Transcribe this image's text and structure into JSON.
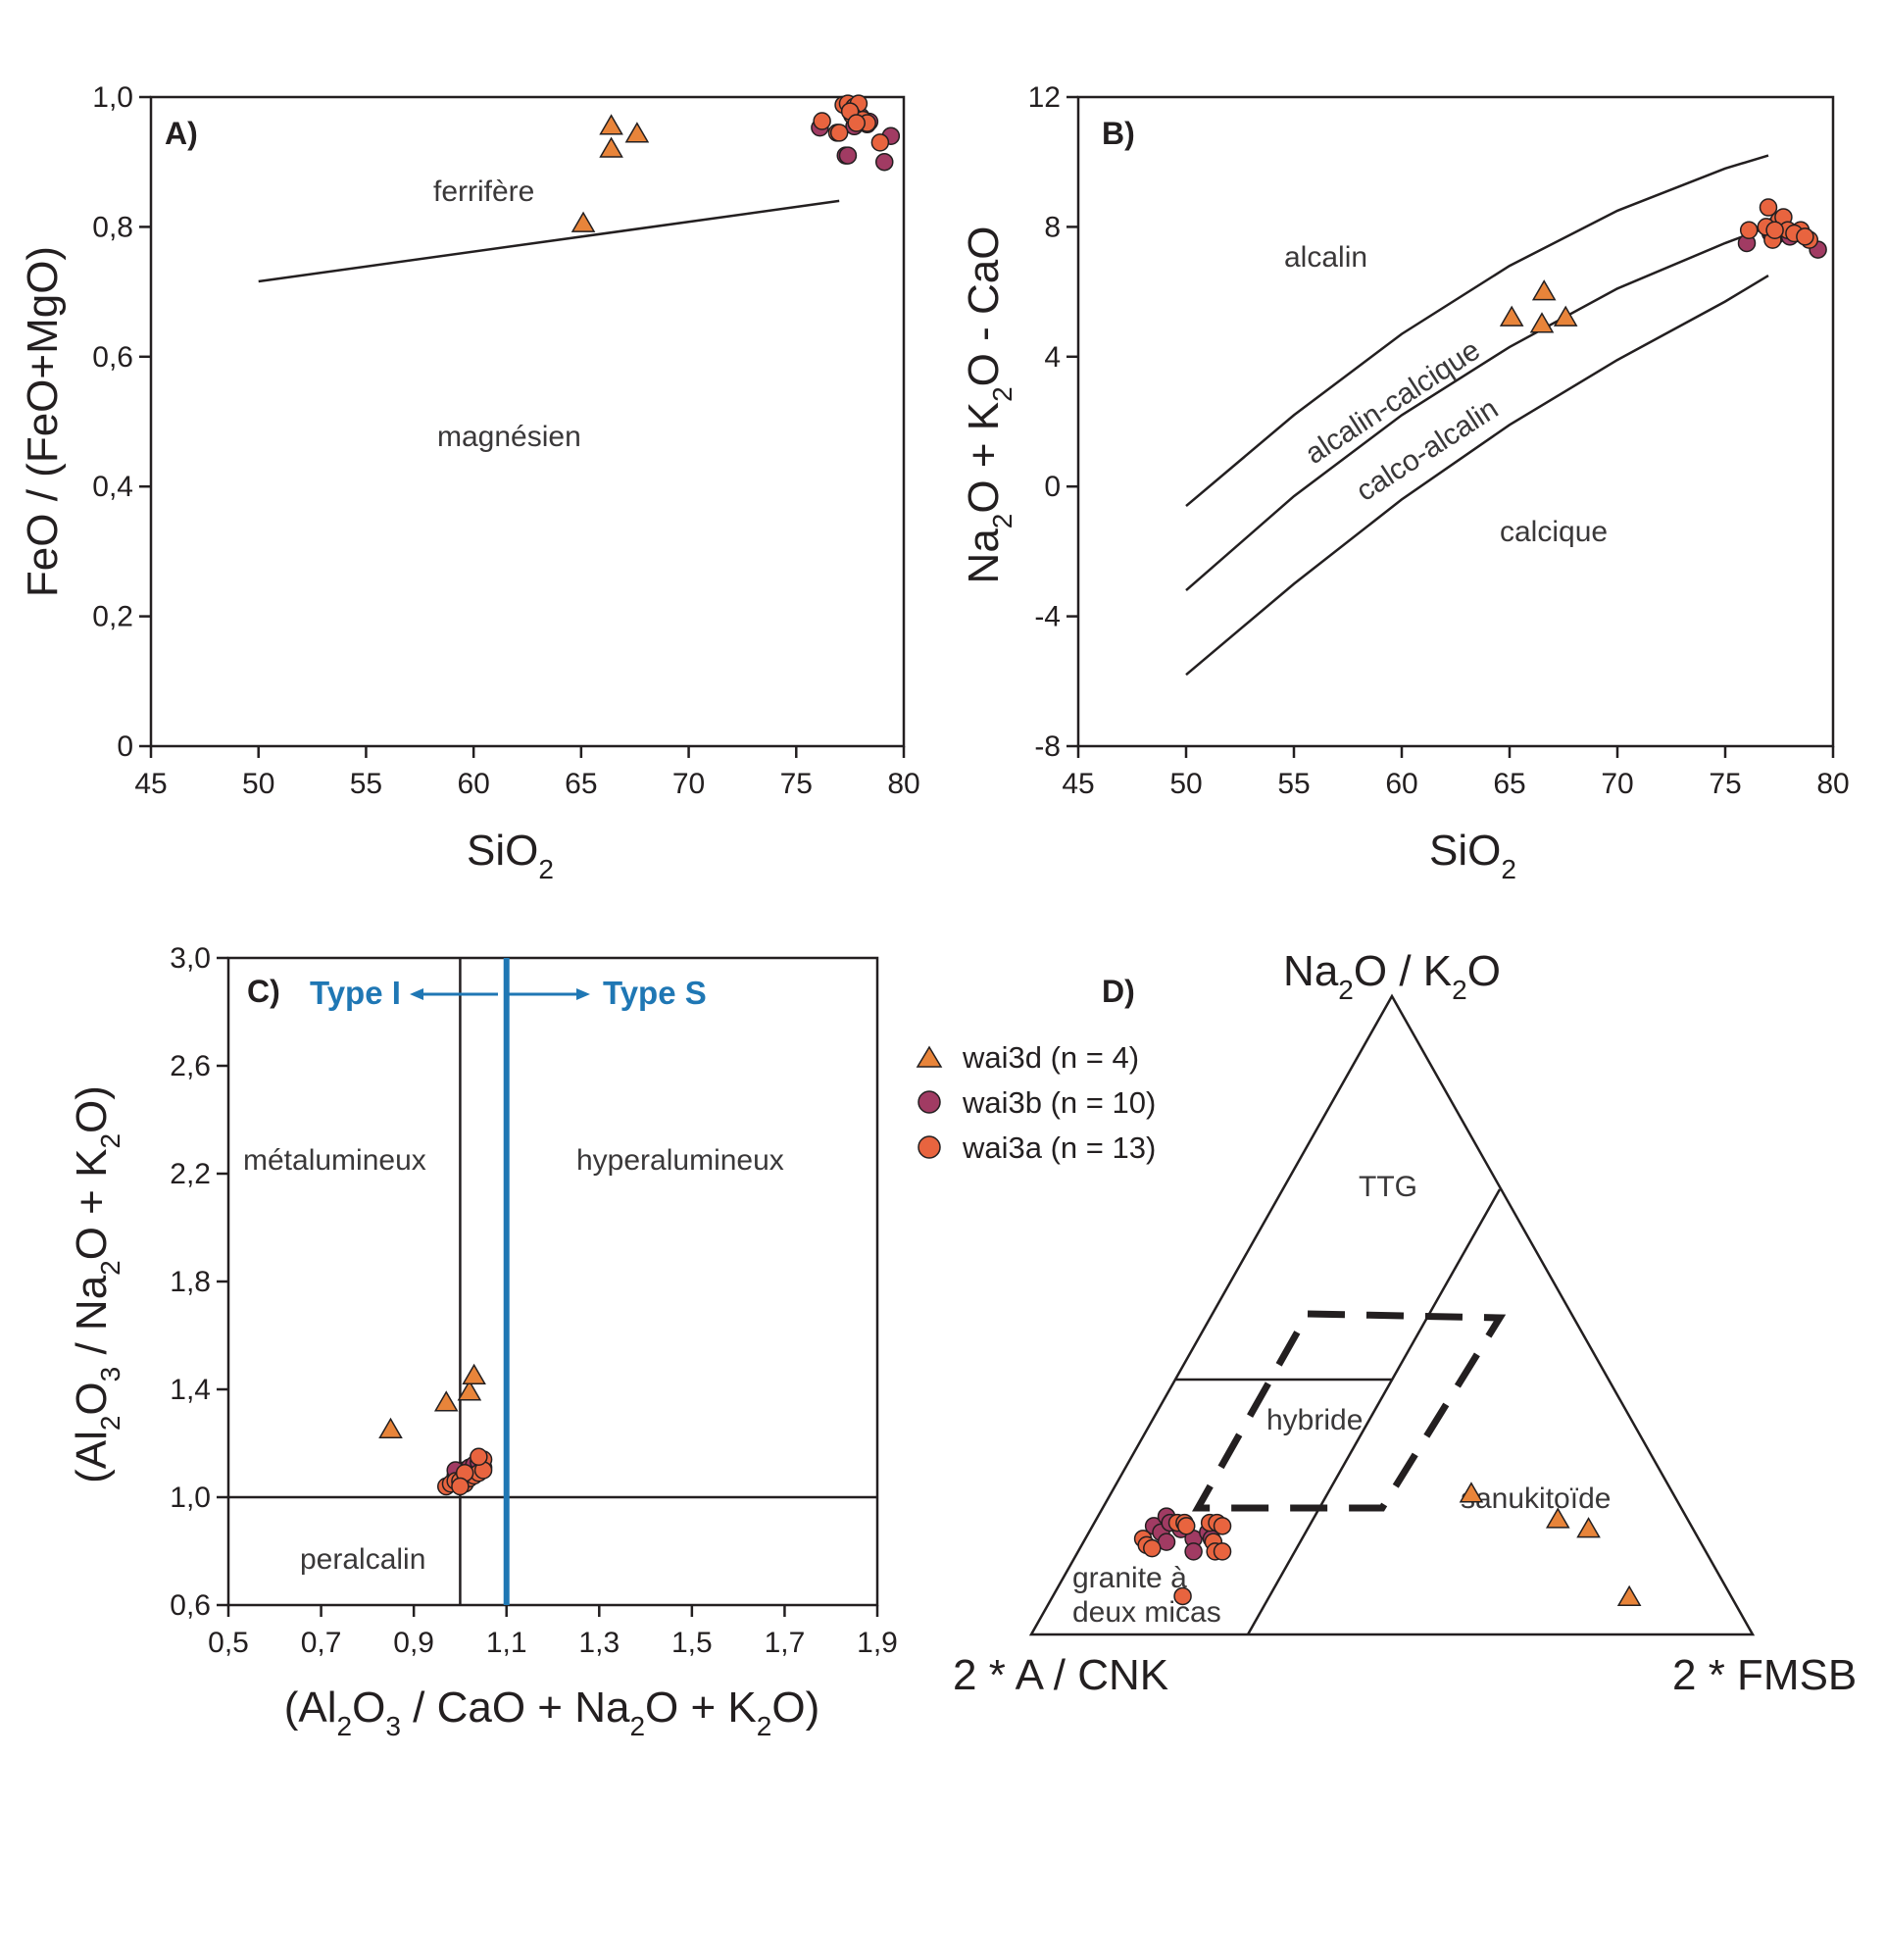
{
  "colors": {
    "tri": "#e8843a",
    "wai3b": "#a13b63",
    "wai3a": "#e8643f",
    "type_line": "#1f77b4",
    "ink": "#231f20"
  },
  "legend": {
    "items": [
      {
        "label": "wai3d (n = 4)",
        "marker": "triangle"
      },
      {
        "label": "wai3b (n = 10)",
        "marker": "circle"
      },
      {
        "label": "wai3a (n = 13)",
        "marker": "circle"
      }
    ]
  },
  "chart_data": [
    {
      "panel": "A)",
      "type": "scatter",
      "xlabel": "SiO",
      "xlabel_sub": "2",
      "ylabel": "FeO / (FeO+MgO)",
      "xlim": [
        45,
        80
      ],
      "ylim": [
        0,
        1.0
      ],
      "xticks": [
        "45",
        "50",
        "55",
        "60",
        "65",
        "70",
        "75",
        "80"
      ],
      "yticks": [
        "0",
        "0,2",
        "0,4",
        "0,6",
        "0,8",
        "1,0"
      ],
      "fields": [
        "ferrifère",
        "magnésien"
      ],
      "boundary": [
        [
          50,
          0.716
        ],
        [
          77,
          0.84
        ]
      ],
      "series": [
        {
          "name": "wai3d (n = 4)",
          "points": [
            [
              65.1,
              0.805
            ],
            [
              66.4,
              0.955
            ],
            [
              66.4,
              0.92
            ],
            [
              67.6,
              0.943
            ]
          ]
        },
        {
          "name": "wai3b (n = 10)",
          "points": [
            [
              76.1,
              0.953
            ],
            [
              77.3,
              0.91
            ],
            [
              77.4,
              0.91
            ],
            [
              78.2,
              0.96
            ],
            [
              78.3,
              0.958
            ],
            [
              78.4,
              0.962
            ],
            [
              79.1,
              0.9
            ],
            [
              79.4,
              0.94
            ],
            [
              77.7,
              0.955
            ],
            [
              78.0,
              0.97
            ]
          ]
        },
        {
          "name": "wai3a (n = 13)",
          "points": [
            [
              76.2,
              0.963
            ],
            [
              76.9,
              0.945
            ],
            [
              77.2,
              0.988
            ],
            [
              77.4,
              0.99
            ],
            [
              77.7,
              0.985
            ],
            [
              77.9,
              0.99
            ],
            [
              77.6,
              0.972
            ],
            [
              78.1,
              0.965
            ],
            [
              77.5,
              0.978
            ],
            [
              78.3,
              0.96
            ],
            [
              78.9,
              0.93
            ],
            [
              77.8,
              0.96
            ],
            [
              77.0,
              0.945
            ]
          ]
        }
      ]
    },
    {
      "panel": "B)",
      "type": "scatter",
      "xlabel": "SiO",
      "xlabel_sub": "2",
      "ylabel_parts": [
        "Na",
        "2",
        "O + K",
        "2",
        "O - CaO"
      ],
      "xlim": [
        45,
        80
      ],
      "ylim": [
        -8,
        12
      ],
      "xticks": [
        "45",
        "50",
        "55",
        "60",
        "65",
        "70",
        "75",
        "80"
      ],
      "yticks": [
        "-8",
        "-4",
        "0",
        "4",
        "8",
        "12"
      ],
      "fields": [
        "alcalin",
        "alcalin-calcique",
        "calco-alcalin",
        "calcique"
      ],
      "boundaries": [
        [
          [
            50,
            -0.6
          ],
          [
            55,
            2.2
          ],
          [
            60,
            4.7
          ],
          [
            65,
            6.8
          ],
          [
            70,
            8.5
          ],
          [
            75,
            9.8
          ],
          [
            77,
            10.2
          ]
        ],
        [
          [
            50,
            -3.2
          ],
          [
            55,
            -0.3
          ],
          [
            60,
            2.2
          ],
          [
            65,
            4.3
          ],
          [
            70,
            6.1
          ],
          [
            75,
            7.5
          ],
          [
            77,
            8.0
          ]
        ],
        [
          [
            50,
            -5.8
          ],
          [
            55,
            -3.0
          ],
          [
            60,
            -0.4
          ],
          [
            65,
            1.9
          ],
          [
            70,
            3.9
          ],
          [
            75,
            5.7
          ],
          [
            77,
            6.5
          ]
        ]
      ],
      "series": [
        {
          "name": "wai3d (n = 4)",
          "points": [
            [
              65.1,
              5.2
            ],
            [
              66.5,
              5.0
            ],
            [
              66.6,
              6.0
            ],
            [
              67.6,
              5.2
            ]
          ]
        },
        {
          "name": "wai3b (n = 10)",
          "points": [
            [
              76.0,
              7.5
            ],
            [
              77.1,
              7.8
            ],
            [
              77.3,
              7.7
            ],
            [
              77.5,
              7.8
            ],
            [
              77.6,
              7.9
            ],
            [
              77.8,
              7.8
            ],
            [
              78.0,
              7.7
            ],
            [
              78.4,
              7.8
            ],
            [
              79.3,
              7.3
            ],
            [
              77.0,
              7.95
            ]
          ]
        },
        {
          "name": "wai3a (n = 13)",
          "points": [
            [
              76.1,
              7.9
            ],
            [
              77.0,
              8.6
            ],
            [
              77.4,
              8.1
            ],
            [
              77.5,
              8.2
            ],
            [
              77.7,
              8.3
            ],
            [
              77.9,
              7.9
            ],
            [
              78.5,
              7.9
            ],
            [
              78.9,
              7.6
            ],
            [
              77.2,
              7.6
            ],
            [
              78.2,
              7.8
            ],
            [
              76.9,
              8.0
            ],
            [
              77.3,
              7.9
            ],
            [
              78.7,
              7.7
            ]
          ]
        }
      ]
    },
    {
      "panel": "C)",
      "type": "scatter",
      "xlabel_parts": [
        "(Al",
        "2",
        "O",
        "3",
        " / CaO + Na",
        "2",
        "O + K",
        "2",
        "O)"
      ],
      "ylabel_parts": [
        "(Al",
        "2",
        "O",
        "3",
        " / Na",
        "2",
        "O + K",
        "2",
        "O)"
      ],
      "xlim": [
        0.5,
        1.9
      ],
      "ylim": [
        0.6,
        3.0
      ],
      "xticks": [
        "0,5",
        "0,7",
        "0,9",
        "1,1",
        "1,3",
        "1,5",
        "1,7",
        "1,9"
      ],
      "yticks": [
        "0,6",
        "1,0",
        "1,4",
        "1,8",
        "2,2",
        "2,6",
        "3,0"
      ],
      "fields": [
        "métalumineux",
        "hyperalumineux",
        "peralcalin"
      ],
      "type_i": "Type I",
      "type_s": "Type S",
      "type_boundary_x": 1.1,
      "acnk_line_x": 1.0,
      "ank_line_y": 1.0,
      "series": [
        {
          "name": "wai3d (n = 4)",
          "points": [
            [
              0.85,
              1.25
            ],
            [
              0.97,
              1.35
            ],
            [
              1.02,
              1.39
            ],
            [
              1.03,
              1.45
            ]
          ]
        },
        {
          "name": "wai3b (n = 10)",
          "points": [
            [
              0.99,
              1.08
            ],
            [
              1.0,
              1.07
            ],
            [
              1.01,
              1.1
            ],
            [
              1.02,
              1.11
            ],
            [
              1.03,
              1.12
            ],
            [
              1.04,
              1.13
            ],
            [
              1.05,
              1.11
            ],
            [
              1.0,
              1.09
            ],
            [
              1.02,
              1.08
            ],
            [
              0.99,
              1.1
            ]
          ]
        },
        {
          "name": "wai3a (n = 13)",
          "points": [
            [
              0.97,
              1.04
            ],
            [
              0.98,
              1.05
            ],
            [
              0.99,
              1.06
            ],
            [
              1.0,
              1.06
            ],
            [
              1.01,
              1.05
            ],
            [
              1.02,
              1.07
            ],
            [
              1.03,
              1.08
            ],
            [
              1.04,
              1.09
            ],
            [
              1.05,
              1.14
            ],
            [
              1.05,
              1.1
            ],
            [
              1.04,
              1.15
            ],
            [
              1.01,
              1.09
            ],
            [
              1.0,
              1.04
            ]
          ]
        }
      ]
    },
    {
      "panel": "D)",
      "type": "scatter",
      "vertex_top_parts": [
        "Na",
        "2",
        "O / K",
        "2",
        "O"
      ],
      "vertex_left": "2 * A / CNK",
      "vertex_right": "2 * FMSB",
      "fields": [
        "TTG",
        "hybride",
        "sanukitoïde",
        "granite à",
        "deux micas"
      ],
      "series": [
        {
          "name": "wai3d (n = 4)",
          "points": [
            [
              0.5,
              0.22
            ],
            [
              0.64,
              0.18
            ],
            [
              0.69,
              0.165
            ],
            [
              0.8,
              0.058
            ]
          ]
        },
        {
          "name": "wai3b (n = 10)",
          "points": [
            [
              0.085,
              0.17
            ],
            [
              0.095,
              0.185
            ],
            [
              0.1,
              0.16
            ],
            [
              0.105,
              0.175
            ],
            [
              0.115,
              0.145
            ],
            [
              0.125,
              0.165
            ],
            [
              0.15,
              0.15
            ],
            [
              0.165,
              0.16
            ],
            [
              0.16,
              0.13
            ],
            [
              0.175,
              0.15
            ]
          ]
        },
        {
          "name": "wai3a (n = 13)",
          "points": [
            [
              0.08,
              0.15
            ],
            [
              0.09,
              0.14
            ],
            [
              0.1,
              0.135
            ],
            [
              0.115,
              0.175
            ],
            [
              0.125,
              0.175
            ],
            [
              0.13,
              0.17
            ],
            [
              0.16,
              0.175
            ],
            [
              0.17,
              0.175
            ],
            [
              0.18,
              0.17
            ],
            [
              0.18,
              0.145
            ],
            [
              0.19,
              0.13
            ],
            [
              0.2,
              0.13
            ],
            [
              0.18,
              0.06
            ]
          ]
        }
      ]
    }
  ]
}
